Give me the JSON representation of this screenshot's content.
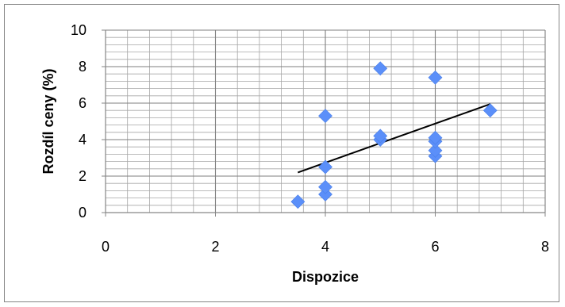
{
  "chart_data": {
    "type": "scatter",
    "title": "",
    "xlabel": "Dispozice",
    "ylabel": "Rozdíl ceny (%)",
    "xlim": [
      0,
      8
    ],
    "ylim": [
      0,
      10
    ],
    "x_ticks": [
      "0",
      "2",
      "4",
      "6",
      "8"
    ],
    "y_ticks": [
      "0",
      "2",
      "4",
      "6",
      "8",
      "10"
    ],
    "grid": true,
    "legend": "none",
    "series": [
      {
        "marker": "diamond",
        "color": "#5b8ff9",
        "points": [
          {
            "x": 3.5,
            "y": 0.6
          },
          {
            "x": 4,
            "y": 1.0
          },
          {
            "x": 4,
            "y": 1.4
          },
          {
            "x": 4,
            "y": 2.5
          },
          {
            "x": 4,
            "y": 5.3
          },
          {
            "x": 5,
            "y": 4.0
          },
          {
            "x": 5,
            "y": 4.2
          },
          {
            "x": 5,
            "y": 7.9
          },
          {
            "x": 6,
            "y": 3.1
          },
          {
            "x": 6,
            "y": 3.4
          },
          {
            "x": 6,
            "y": 3.9
          },
          {
            "x": 6,
            "y": 4.1
          },
          {
            "x": 6,
            "y": 7.4
          },
          {
            "x": 7,
            "y": 5.6
          }
        ]
      }
    ],
    "trendline": {
      "type": "linear",
      "color": "#000000",
      "x": [
        3.5,
        7
      ],
      "y": [
        2.2,
        5.95
      ]
    }
  }
}
